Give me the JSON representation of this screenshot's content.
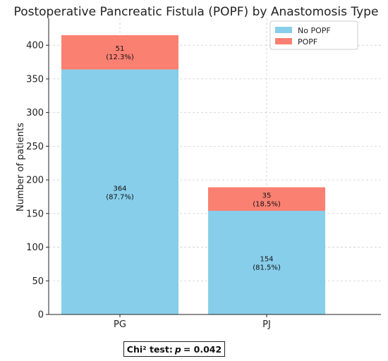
{
  "chart_data": {
    "type": "bar",
    "stacked": true,
    "title": "Postoperative Pancreatic Fistula (POPF) by Anastomosis Type",
    "xlabel": "",
    "ylabel": "Number of patients",
    "categories": [
      "PG",
      "PJ"
    ],
    "ylim": [
      0,
      440
    ],
    "yticks": [
      0,
      50,
      100,
      150,
      200,
      250,
      300,
      350,
      400
    ],
    "grid": true,
    "legend_position": "top-right",
    "series": [
      {
        "name": "No POPF",
        "color": "#87CEEB",
        "values": [
          364,
          154
        ],
        "labels": [
          "(87.7%)",
          "(81.5%)"
        ]
      },
      {
        "name": "POPF",
        "color": "#FA8072",
        "values": [
          51,
          35
        ],
        "labels": [
          "(12.3%)",
          "(18.5%)"
        ]
      }
    ]
  },
  "annotation": {
    "prefix": "Chi² test:",
    "symbol": "p",
    "value": "= 0.042"
  }
}
